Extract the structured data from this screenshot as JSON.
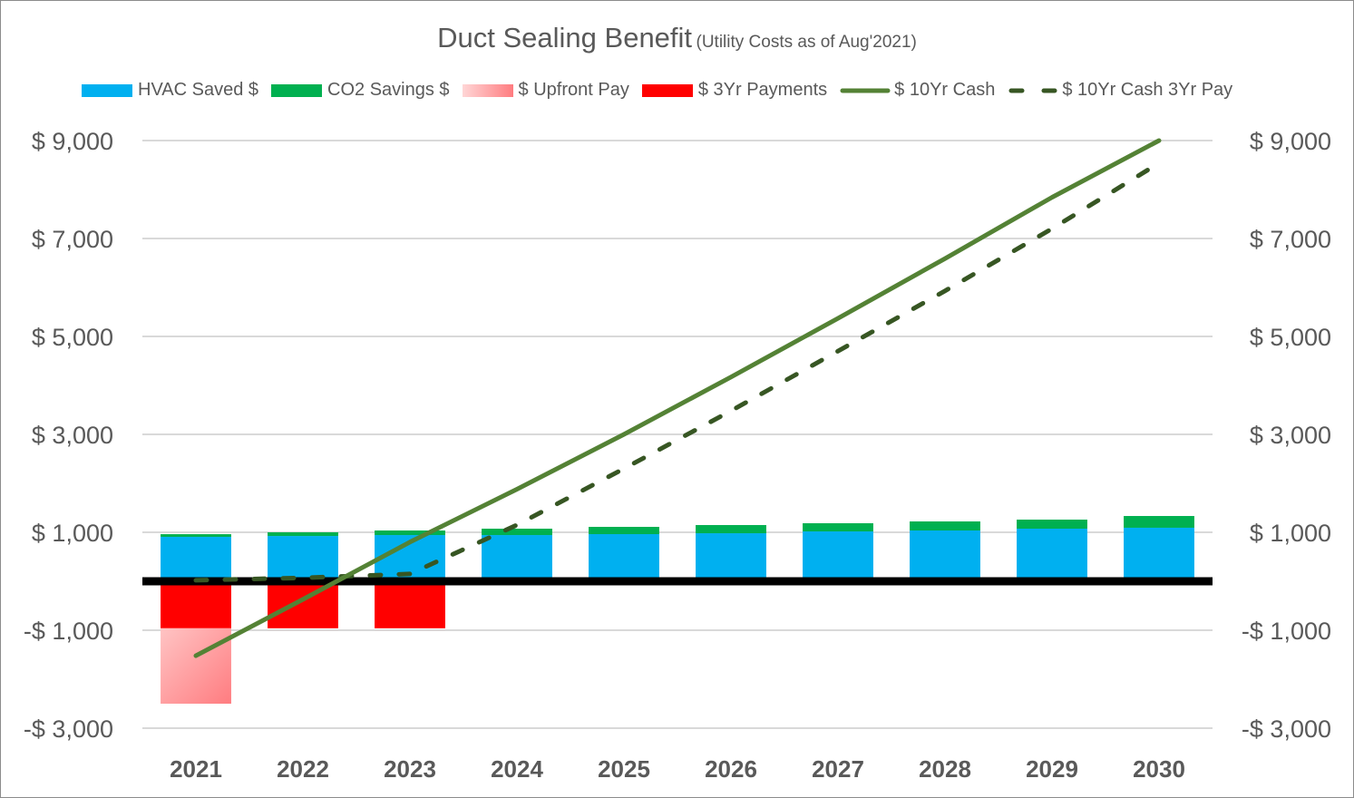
{
  "chart_data": {
    "type": "bar",
    "title": "Duct Sealing Benefit",
    "subtitle": "(Utility Costs as of Aug'2021)",
    "xlabel": "",
    "ylabel": "",
    "categories": [
      "2021",
      "2022",
      "2023",
      "2024",
      "2025",
      "2026",
      "2027",
      "2028",
      "2029",
      "2030"
    ],
    "ylim": [
      -3000,
      9000
    ],
    "yticks": [
      9000,
      7000,
      5000,
      3000,
      1000,
      -1000,
      -3000
    ],
    "ytick_labels": [
      "$ 9,000",
      "$ 7,000",
      "$ 5,000",
      "$ 3,000",
      "$ 1,000",
      "-$ 1,000",
      "-$ 3,000"
    ],
    "secondary_ytick_labels": [
      "$ 9,000",
      "$ 7,000",
      "$ 5,000",
      "$ 3,000",
      "$ 1,000",
      "-$ 1,000",
      "-$ 3,000"
    ],
    "grid": true,
    "legend_position": "top",
    "series": [
      {
        "name": "HVAC Saved $",
        "kind": "stacked-bar",
        "color": "#00B0F0",
        "values": [
          907,
          925,
          944,
          944,
          963,
          981,
          1018,
          1037,
          1074,
          1093
        ]
      },
      {
        "name": "CO2 Savings $",
        "kind": "stacked-bar",
        "color": "#00B050",
        "values": [
          55,
          75,
          93,
          130,
          148,
          167,
          167,
          185,
          185,
          240
        ]
      },
      {
        "name": "$ Upfront Pay",
        "kind": "stacked-bar-negative",
        "color": "#FF7C80",
        "color_light": "#FFC7C7",
        "values": [
          -1540,
          0,
          0,
          0,
          0,
          0,
          0,
          0,
          0,
          0
        ]
      },
      {
        "name": "$ 3Yr Payments",
        "kind": "stacked-bar-negative",
        "color": "#FF0000",
        "values": [
          -960,
          -960,
          -960,
          0,
          0,
          0,
          0,
          0,
          0,
          0
        ]
      },
      {
        "name": "$ 10Yr Cash",
        "kind": "line",
        "color": "#548235",
        "dash": false,
        "values": [
          -1520,
          -370,
          800,
          1880,
          3000,
          4170,
          5370,
          6590,
          7840,
          9000
        ]
      },
      {
        "name": "$ 10Yr Cash 3Yr Pay",
        "kind": "line",
        "color": "#375623",
        "dash": true,
        "values": [
          20,
          70,
          150,
          1150,
          2300,
          3480,
          4700,
          5930,
          7200,
          8540
        ]
      }
    ]
  }
}
